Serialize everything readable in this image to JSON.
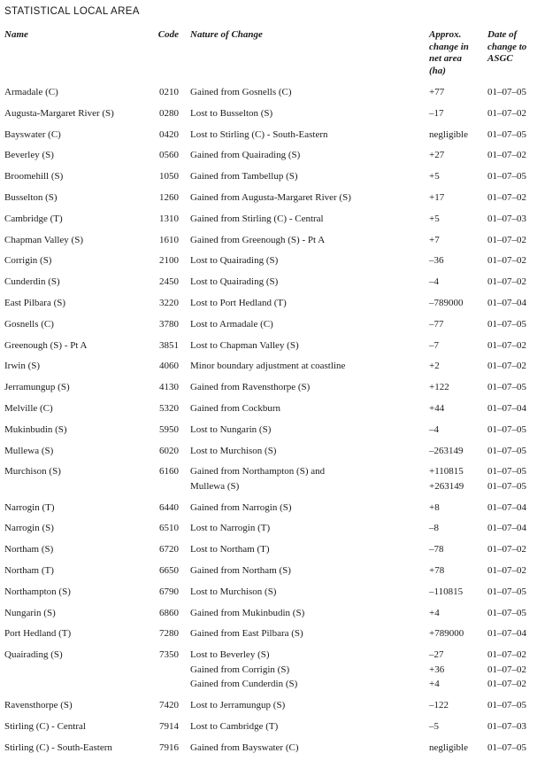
{
  "page_title": "STATISTICAL LOCAL AREA",
  "table": {
    "headers": {
      "name": "Name",
      "code": "Code",
      "nature": "Nature of Change",
      "change_lines": [
        "Approx.",
        "change in",
        "net area",
        "(ha)"
      ],
      "date_lines": [
        "Date of",
        "change to",
        "ASGC"
      ]
    },
    "rows": [
      {
        "name": "Armadale (C)",
        "code": "0210",
        "nature": [
          "Gained from Gosnells (C)"
        ],
        "change": [
          "+77"
        ],
        "date": [
          "01–07–05"
        ]
      },
      {
        "name": "Augusta-Margaret River (S)",
        "code": "0280",
        "nature": [
          "Lost to Busselton (S)"
        ],
        "change": [
          "–17"
        ],
        "date": [
          "01–07–02"
        ]
      },
      {
        "name": "Bayswater (C)",
        "code": "0420",
        "nature": [
          "Lost to Stirling (C) - South-Eastern"
        ],
        "change": [
          "negligible"
        ],
        "date": [
          "01–07–05"
        ]
      },
      {
        "name": "Beverley (S)",
        "code": "0560",
        "nature": [
          "Gained from Quairading (S)"
        ],
        "change": [
          "+27"
        ],
        "date": [
          "01–07–02"
        ]
      },
      {
        "name": "Broomehill (S)",
        "code": "1050",
        "nature": [
          "Gained from Tambellup (S)"
        ],
        "change": [
          "+5"
        ],
        "date": [
          "01–07–05"
        ]
      },
      {
        "name": "Busselton (S)",
        "code": "1260",
        "nature": [
          "Gained from Augusta-Margaret River (S)"
        ],
        "change": [
          "+17"
        ],
        "date": [
          "01–07–02"
        ]
      },
      {
        "name": "Cambridge (T)",
        "code": "1310",
        "nature": [
          "Gained from Stirling (C) - Central"
        ],
        "change": [
          "+5"
        ],
        "date": [
          "01–07–03"
        ]
      },
      {
        "name": "Chapman Valley (S)",
        "code": "1610",
        "nature": [
          "Gained from Greenough (S) - Pt A"
        ],
        "change": [
          "+7"
        ],
        "date": [
          "01–07–02"
        ]
      },
      {
        "name": "Corrigin (S)",
        "code": "2100",
        "nature": [
          "Lost to Quairading (S)"
        ],
        "change": [
          "–36"
        ],
        "date": [
          "01–07–02"
        ]
      },
      {
        "name": "Cunderdin (S)",
        "code": "2450",
        "nature": [
          "Lost to Quairading (S)"
        ],
        "change": [
          "–4"
        ],
        "date": [
          "01–07–02"
        ]
      },
      {
        "name": "East Pilbara (S)",
        "code": "3220",
        "nature": [
          "Lost to Port Hedland (T)"
        ],
        "change": [
          "–789000"
        ],
        "date": [
          "01–07–04"
        ]
      },
      {
        "name": "Gosnells (C)",
        "code": "3780",
        "nature": [
          "Lost to Armadale (C)"
        ],
        "change": [
          "–77"
        ],
        "date": [
          "01–07–05"
        ]
      },
      {
        "name": "Greenough (S) - Pt A",
        "code": "3851",
        "nature": [
          "Lost to Chapman Valley (S)"
        ],
        "change": [
          "–7"
        ],
        "date": [
          "01–07–02"
        ]
      },
      {
        "name": "Irwin (S)",
        "code": "4060",
        "nature": [
          "Minor boundary adjustment at coastline"
        ],
        "change": [
          "+2"
        ],
        "date": [
          "01–07–02"
        ]
      },
      {
        "name": "Jerramungup (S)",
        "code": "4130",
        "nature": [
          "Gained from Ravensthorpe (S)"
        ],
        "change": [
          "+122"
        ],
        "date": [
          "01–07–05"
        ]
      },
      {
        "name": "Melville (C)",
        "code": "5320",
        "nature": [
          "Gained from Cockburn"
        ],
        "change": [
          "+44"
        ],
        "date": [
          "01–07–04"
        ]
      },
      {
        "name": "Mukinbudin (S)",
        "code": "5950",
        "nature": [
          "Lost to Nungarin (S)"
        ],
        "change": [
          "–4"
        ],
        "date": [
          "01–07–05"
        ]
      },
      {
        "name": "Mullewa (S)",
        "code": "6020",
        "nature": [
          "Lost to Murchison (S)"
        ],
        "change": [
          "–263149"
        ],
        "date": [
          "01–07–05"
        ]
      },
      {
        "name": "Murchison (S)",
        "code": "6160",
        "nature": [
          "Gained from Northampton (S) and",
          "Mullewa (S)"
        ],
        "change": [
          "+110815",
          "+263149"
        ],
        "date": [
          "01–07–05",
          "01–07–05"
        ]
      },
      {
        "name": "Narrogin (T)",
        "code": "6440",
        "nature": [
          "Gained from Narrogin (S)"
        ],
        "change": [
          "+8"
        ],
        "date": [
          "01–07–04"
        ]
      },
      {
        "name": "Narrogin (S)",
        "code": "6510",
        "nature": [
          "Lost to Narrogin (T)"
        ],
        "change": [
          "–8"
        ],
        "date": [
          "01–07–04"
        ]
      },
      {
        "name": "Northam (S)",
        "code": "6720",
        "nature": [
          "Lost to Northam (T)"
        ],
        "change": [
          "–78"
        ],
        "date": [
          "01–07–02"
        ]
      },
      {
        "name": "Northam (T)",
        "code": "6650",
        "nature": [
          "Gained from Northam (S)"
        ],
        "change": [
          "+78"
        ],
        "date": [
          "01–07–02"
        ]
      },
      {
        "name": "Northampton (S)",
        "code": "6790",
        "nature": [
          "Lost to Murchison (S)"
        ],
        "change": [
          "–110815"
        ],
        "date": [
          "01–07–05"
        ]
      },
      {
        "name": "Nungarin (S)",
        "code": "6860",
        "nature": [
          "Gained from Mukinbudin (S)"
        ],
        "change": [
          "+4"
        ],
        "date": [
          "01–07–05"
        ]
      },
      {
        "name": "Port Hedland (T)",
        "code": "7280",
        "nature": [
          "Gained from East Pilbara (S)"
        ],
        "change": [
          "+789000"
        ],
        "date": [
          "01–07–04"
        ]
      },
      {
        "name": "Quairading (S)",
        "code": "7350",
        "nature": [
          "Lost to Beverley (S)",
          "Gained from Corrigin (S)",
          "Gained from Cunderdin (S)"
        ],
        "change": [
          "–27",
          "+36",
          "+4"
        ],
        "date": [
          "01–07–02",
          "01–07–02",
          "01–07–02"
        ]
      },
      {
        "name": "Ravensthorpe (S)",
        "code": "7420",
        "nature": [
          "Lost to Jerramungup (S)"
        ],
        "change": [
          "–122"
        ],
        "date": [
          "01–07–05"
        ]
      },
      {
        "name": "Stirling (C) - Central",
        "code": "7914",
        "nature": [
          "Lost to Cambridge (T)"
        ],
        "change": [
          "–5"
        ],
        "date": [
          "01–07–03"
        ]
      },
      {
        "name": "Stirling (C) - South-Eastern",
        "code": "7916",
        "nature": [
          "Gained from Bayswater (C)"
        ],
        "change": [
          "negligible"
        ],
        "date": [
          "01–07–05"
        ]
      }
    ]
  }
}
